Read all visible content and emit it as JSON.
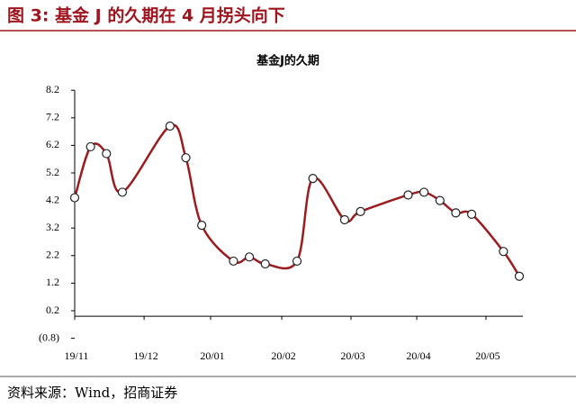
{
  "chart_data": {
    "type": "line",
    "figure_title": "图 3: 基金 J 的久期在 4 月拐头向下",
    "title": "基金J的久期",
    "source": "资料来源：Wind，招商证券",
    "x": [
      0,
      1,
      2,
      3,
      6,
      7,
      8,
      10,
      11,
      12,
      14,
      15,
      17,
      18,
      21,
      22,
      23,
      24,
      25,
      27,
      28
    ],
    "series": [
      {
        "name": "基金J",
        "color": "#9b1b1f",
        "values": [
          4.3,
          6.15,
          5.9,
          4.5,
          6.9,
          5.75,
          3.3,
          2.0,
          2.15,
          1.9,
          2.0,
          5.0,
          3.5,
          3.8,
          4.4,
          4.5,
          4.2,
          3.75,
          3.7,
          2.35,
          1.45
        ]
      }
    ],
    "xlim": [
      0,
      28
    ],
    "xticks": [
      {
        "value": 0,
        "label": "19/11"
      },
      {
        "value": 4.37,
        "label": "19/12"
      },
      {
        "value": 8.56,
        "label": "20/01"
      },
      {
        "value": 13.04,
        "label": "20/02"
      },
      {
        "value": 17.4,
        "label": "20/03"
      },
      {
        "value": 21.54,
        "label": "20/04"
      },
      {
        "value": 25.9,
        "label": "20/05"
      }
    ],
    "ylim": [
      -0.8,
      8.2
    ],
    "yticks": [
      {
        "value": -0.8,
        "label": "(0.8)"
      },
      0.2,
      1.2,
      2.2,
      3.2,
      4.2,
      5.2,
      6.2,
      7.2,
      8.2
    ]
  }
}
